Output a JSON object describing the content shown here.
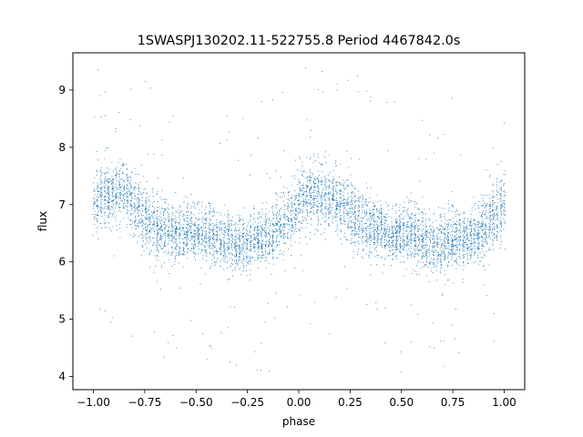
{
  "chart_data": {
    "type": "scatter",
    "title": "1SWASPJ130202.11-522755.8 Period 4467842.0s",
    "xlabel": "phase",
    "ylabel": "flux",
    "xlim": [
      -1.1,
      1.1
    ],
    "ylim": [
      3.77,
      9.65
    ],
    "x_ticks": [
      -1.0,
      -0.75,
      -0.5,
      -0.25,
      0.0,
      0.25,
      0.5,
      0.75,
      1.0
    ],
    "x_tick_labels": [
      "−1.00",
      "−0.75",
      "−0.50",
      "−0.25",
      "0.00",
      "0.25",
      "0.50",
      "0.75",
      "1.00"
    ],
    "y_ticks": [
      4,
      5,
      6,
      7,
      8,
      9
    ],
    "y_tick_labels": [
      "4",
      "5",
      "6",
      "7",
      "8",
      "9"
    ],
    "grid": false,
    "legend": "none",
    "marker_color": "#1f77b4",
    "series": [
      {
        "x": [
          -1.0,
          -0.95,
          -0.9,
          -0.85,
          -0.8,
          -0.75,
          -0.7,
          -0.65,
          -0.6,
          -0.55,
          -0.5,
          -0.45,
          -0.4,
          -0.35,
          -0.3,
          -0.25,
          -0.2,
          -0.15,
          -0.1,
          -0.05,
          0.0,
          0.05,
          0.1,
          0.15,
          0.2,
          0.25,
          0.3,
          0.35,
          0.4,
          0.45,
          0.5,
          0.55,
          0.6,
          0.65,
          0.7,
          0.75,
          0.8,
          0.85,
          0.9,
          0.95,
          1.0
        ],
        "center": [
          7.0,
          7.2,
          7.2,
          7.2,
          7.0,
          6.8,
          6.6,
          6.6,
          6.5,
          6.5,
          6.5,
          6.5,
          6.4,
          6.4,
          6.3,
          6.3,
          6.4,
          6.5,
          6.6,
          6.8,
          7.0,
          7.2,
          7.2,
          7.1,
          7.0,
          6.9,
          6.7,
          6.6,
          6.6,
          6.5,
          6.5,
          6.5,
          6.4,
          6.3,
          6.3,
          6.4,
          6.4,
          6.5,
          6.6,
          6.8,
          7.0
        ],
        "spread": [
          0.55,
          0.5,
          0.5,
          0.5,
          0.5,
          0.5,
          0.5,
          0.5,
          0.45,
          0.45,
          0.45,
          0.45,
          0.45,
          0.45,
          0.45,
          0.45,
          0.45,
          0.45,
          0.45,
          0.5,
          0.55,
          0.5,
          0.5,
          0.5,
          0.5,
          0.5,
          0.5,
          0.45,
          0.45,
          0.45,
          0.45,
          0.45,
          0.45,
          0.45,
          0.45,
          0.45,
          0.45,
          0.45,
          0.5,
          0.55,
          0.6
        ],
        "y_min": 4.0,
        "y_max": 9.4
      }
    ]
  }
}
